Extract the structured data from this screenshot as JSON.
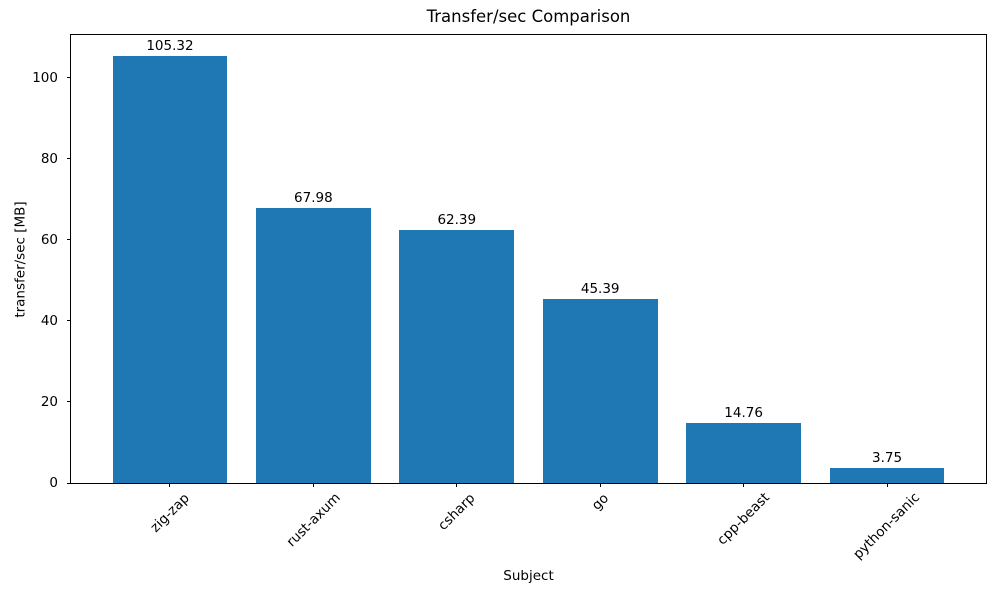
{
  "figure": {
    "background": "#ffffff",
    "text_color": "#000000",
    "axis_color": "#000000"
  },
  "chart_data": {
    "type": "bar",
    "title": "Transfer/sec Comparison",
    "xlabel": "Subject",
    "ylabel": "transfer/sec [MB]",
    "categories": [
      "zig-zap",
      "rust-axum",
      "csharp",
      "go",
      "cpp-beast",
      "python-sanic"
    ],
    "values": [
      105.32,
      67.98,
      62.39,
      45.39,
      14.76,
      3.75
    ],
    "value_labels": [
      "105.32",
      "67.98",
      "62.39",
      "45.39",
      "14.76",
      "3.75"
    ],
    "bar_color": "#1f77b4",
    "yticks": [
      0,
      20,
      40,
      60,
      80,
      100
    ],
    "y_tick_labels": [
      "0",
      "20",
      "40",
      "60",
      "80",
      "100"
    ],
    "ylim": [
      0,
      110.59
    ],
    "bar_width_fraction": 0.8,
    "x_tick_rotation_deg": 45,
    "grid": false,
    "legend_position": "none"
  }
}
